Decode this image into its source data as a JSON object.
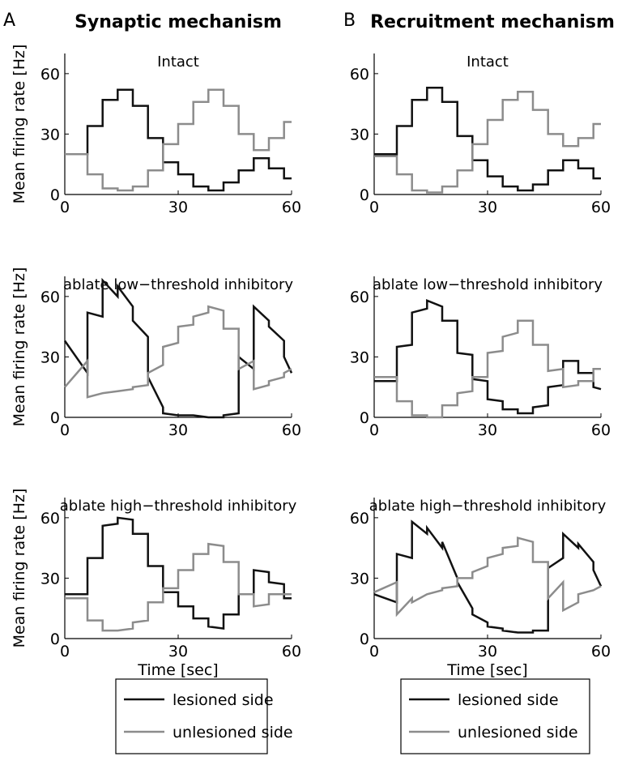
{
  "panels": [
    {
      "letter": "A",
      "heading": "Synaptic mechanism"
    },
    {
      "letter": "B",
      "heading": "Recruitment mechanism"
    }
  ],
  "chart_data": [
    {
      "type": "line",
      "title": "Intact",
      "ylabel": "Mean firing rate [Hz]",
      "xlim": [
        0,
        60
      ],
      "ylim": [
        0,
        70
      ],
      "xticks": [
        0,
        30,
        60
      ],
      "yticks": [
        0,
        30,
        60
      ],
      "x": [
        0,
        6,
        6,
        10,
        10,
        14,
        14,
        18,
        18,
        22,
        22,
        26,
        26,
        30,
        30,
        34,
        34,
        38,
        38,
        42,
        42,
        46,
        46,
        50,
        50,
        54,
        54,
        58,
        58,
        60
      ],
      "series": [
        {
          "color": "#111111",
          "values": [
            20,
            20,
            34,
            34,
            47,
            47,
            52,
            52,
            44,
            44,
            28,
            28,
            16,
            16,
            10,
            10,
            4,
            4,
            2,
            2,
            6,
            6,
            12,
            12,
            18,
            18,
            13,
            13,
            8,
            8
          ]
        },
        {
          "color": "#8c8c8c",
          "values": [
            20,
            20,
            10,
            10,
            3,
            3,
            2,
            2,
            4,
            4,
            12,
            12,
            25,
            25,
            35,
            35,
            46,
            46,
            52,
            52,
            44,
            44,
            30,
            30,
            22,
            22,
            28,
            28,
            36,
            36
          ]
        }
      ]
    },
    {
      "type": "line",
      "title": "ablate low−threshold inhibitory",
      "ylabel": "Mean firing rate [Hz]",
      "xlim": [
        0,
        60
      ],
      "ylim": [
        0,
        70
      ],
      "xticks": [
        0,
        30,
        60
      ],
      "yticks": [
        0,
        30,
        60
      ],
      "x": [
        0,
        6,
        6,
        10,
        10,
        14,
        14,
        18,
        18,
        22,
        22,
        26,
        26,
        30,
        30,
        34,
        34,
        38,
        38,
        42,
        42,
        46,
        46,
        50,
        50,
        54,
        54,
        58,
        58,
        60
      ],
      "series": [
        {
          "color": "#111111",
          "values": [
            38,
            22,
            52,
            50,
            68,
            60,
            65,
            55,
            48,
            40,
            20,
            5,
            2,
            1,
            1,
            1,
            1,
            0,
            0,
            0,
            1,
            2,
            30,
            24,
            55,
            48,
            45,
            38,
            30,
            22
          ]
        },
        {
          "color": "#8c8c8c",
          "values": [
            15,
            28,
            10,
            12,
            12,
            13,
            13,
            14,
            15,
            16,
            22,
            26,
            35,
            37,
            45,
            46,
            50,
            52,
            55,
            53,
            44,
            44,
            24,
            28,
            14,
            16,
            18,
            20,
            22,
            24
          ]
        }
      ]
    },
    {
      "type": "line",
      "title": "ablate high−threshold inhibitory",
      "ylabel": "Mean firing rate [Hz]",
      "xlabel": "Time [sec]",
      "legend": true,
      "xlim": [
        0,
        60
      ],
      "ylim": [
        0,
        70
      ],
      "xticks": [
        0,
        30,
        60
      ],
      "yticks": [
        0,
        30,
        60
      ],
      "x": [
        0,
        6,
        6,
        10,
        10,
        14,
        14,
        18,
        18,
        22,
        22,
        26,
        26,
        30,
        30,
        34,
        34,
        38,
        38,
        42,
        42,
        46,
        46,
        50,
        50,
        54,
        54,
        58,
        58,
        60
      ],
      "series": [
        {
          "name": "lesioned side",
          "color": "#111111",
          "values": [
            22,
            22,
            40,
            40,
            56,
            57,
            60,
            59,
            52,
            52,
            36,
            36,
            23,
            23,
            16,
            16,
            10,
            10,
            6,
            5,
            12,
            12,
            22,
            22,
            34,
            33,
            28,
            27,
            20,
            20
          ]
        },
        {
          "name": "unlesioned side",
          "color": "#8c8c8c",
          "values": [
            20,
            20,
            9,
            9,
            4,
            4,
            4,
            5,
            8,
            9,
            18,
            18,
            25,
            25,
            34,
            34,
            42,
            42,
            47,
            46,
            38,
            38,
            22,
            22,
            16,
            17,
            22,
            22,
            22,
            22
          ]
        }
      ]
    },
    {
      "type": "line",
      "title": "Intact",
      "xlim": [
        0,
        60
      ],
      "ylim": [
        0,
        70
      ],
      "xticks": [
        0,
        30,
        60
      ],
      "yticks": [
        0,
        30,
        60
      ],
      "x": [
        0,
        6,
        6,
        10,
        10,
        14,
        14,
        18,
        18,
        22,
        22,
        26,
        26,
        30,
        30,
        34,
        34,
        38,
        38,
        42,
        42,
        46,
        46,
        50,
        50,
        54,
        54,
        58,
        58,
        60
      ],
      "series": [
        {
          "color": "#111111",
          "values": [
            20,
            20,
            34,
            34,
            47,
            47,
            53,
            53,
            46,
            46,
            29,
            29,
            17,
            17,
            9,
            9,
            4,
            4,
            2,
            2,
            5,
            5,
            12,
            12,
            17,
            17,
            13,
            13,
            8,
            8
          ]
        },
        {
          "color": "#8c8c8c",
          "values": [
            19,
            19,
            10,
            10,
            2,
            2,
            1,
            1,
            4,
            4,
            12,
            12,
            25,
            25,
            37,
            37,
            47,
            47,
            51,
            51,
            42,
            42,
            30,
            30,
            24,
            24,
            28,
            28,
            35,
            35
          ]
        }
      ]
    },
    {
      "type": "line",
      "title": "ablate low−threshold inhibitory",
      "xlim": [
        0,
        60
      ],
      "ylim": [
        0,
        70
      ],
      "xticks": [
        0,
        30,
        60
      ],
      "yticks": [
        0,
        30,
        60
      ],
      "x": [
        0,
        6,
        6,
        10,
        10,
        14,
        14,
        18,
        18,
        22,
        22,
        26,
        26,
        30,
        30,
        34,
        34,
        38,
        38,
        42,
        42,
        46,
        46,
        50,
        50,
        54,
        54,
        58,
        58,
        60
      ],
      "series": [
        {
          "color": "#111111",
          "values": [
            18,
            18,
            35,
            36,
            52,
            54,
            58,
            55,
            48,
            48,
            32,
            31,
            19,
            18,
            9,
            8,
            4,
            4,
            2,
            2,
            5,
            6,
            15,
            16,
            28,
            28,
            22,
            22,
            15,
            14
          ]
        },
        {
          "color": "#8c8c8c",
          "values": [
            20,
            20,
            8,
            8,
            1,
            1,
            0,
            0,
            6,
            6,
            12,
            13,
            20,
            20,
            32,
            33,
            40,
            42,
            48,
            48,
            36,
            36,
            23,
            24,
            15,
            16,
            18,
            18,
            24,
            24
          ]
        }
      ]
    },
    {
      "type": "line",
      "title": "ablate high−threshold inhibitory",
      "xlabel": "Time [sec]",
      "legend": true,
      "xlim": [
        0,
        60
      ],
      "ylim": [
        0,
        70
      ],
      "xticks": [
        0,
        30,
        60
      ],
      "yticks": [
        0,
        30,
        60
      ],
      "x": [
        0,
        6,
        6,
        10,
        10,
        14,
        14,
        18,
        18,
        22,
        22,
        26,
        26,
        30,
        30,
        34,
        34,
        38,
        38,
        42,
        42,
        46,
        46,
        50,
        50,
        54,
        54,
        58,
        58,
        60
      ],
      "series": [
        {
          "name": "lesioned side",
          "color": "#111111",
          "values": [
            22,
            18,
            42,
            40,
            58,
            52,
            55,
            45,
            48,
            30,
            28,
            15,
            12,
            8,
            6,
            5,
            4,
            3,
            3,
            3,
            4,
            4,
            35,
            40,
            52,
            45,
            47,
            38,
            34,
            26
          ]
        },
        {
          "name": "unlesioned side",
          "color": "#8c8c8c",
          "values": [
            23,
            28,
            12,
            20,
            18,
            22,
            22,
            24,
            25,
            26,
            30,
            30,
            33,
            36,
            40,
            42,
            45,
            46,
            50,
            48,
            38,
            38,
            20,
            28,
            14,
            18,
            22,
            24,
            24,
            26
          ]
        }
      ]
    }
  ]
}
